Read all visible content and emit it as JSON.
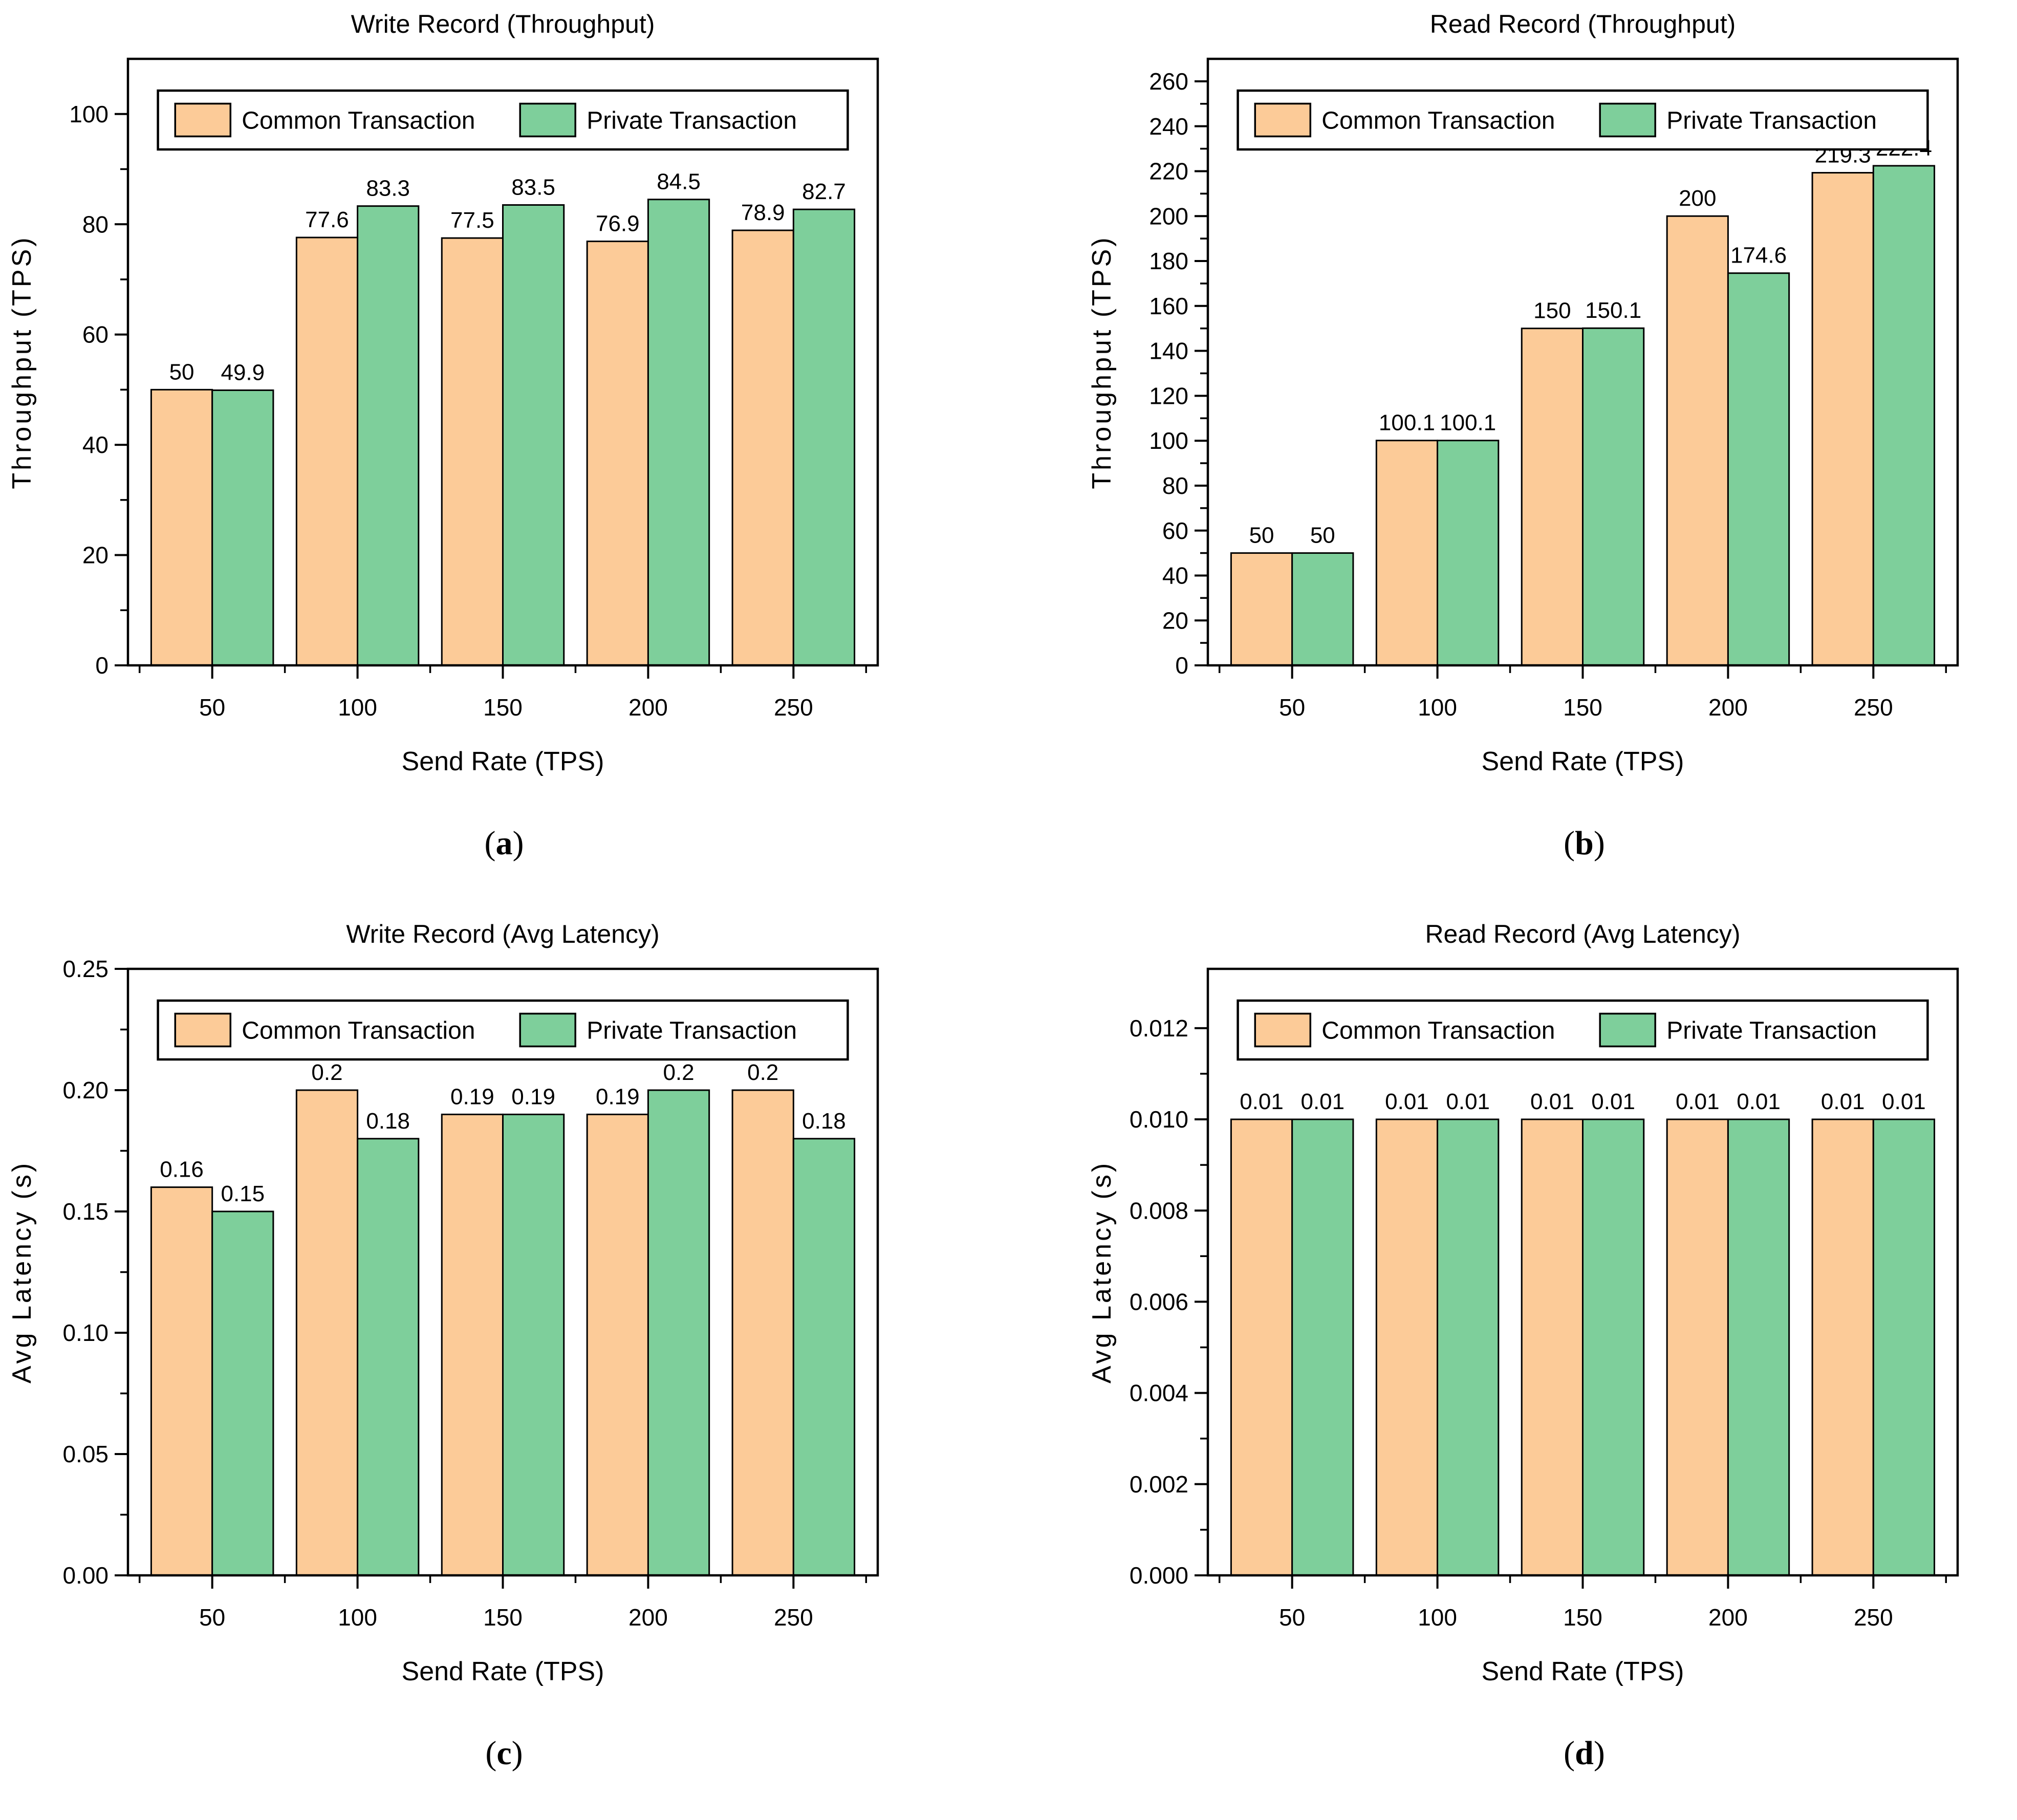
{
  "figure": {
    "background": "#FFFFFF",
    "accent_colors": {
      "common": "#FCCB98",
      "private": "#7ECF9B",
      "axis": "#000000"
    }
  },
  "chart_data": [
    {
      "id": "a",
      "type": "bar",
      "title": "Write Record (Throughput)",
      "xlabel": "Send Rate (TPS)",
      "ylabel": "Throughput (TPS)",
      "caption": {
        "open": "(",
        "letter": "a",
        "close": ")"
      },
      "categories": [
        50,
        100,
        150,
        200,
        250
      ],
      "xlim": [
        21,
        279
      ],
      "ylim": [
        0,
        110
      ],
      "yticks": [
        "0",
        "20",
        "40",
        "60",
        "80",
        "100"
      ],
      "grid": false,
      "legend_position": "top-center-inside",
      "series": [
        {
          "name": "Common Transaction",
          "color": "#FCCB98",
          "values": [
            50,
            77.6,
            77.5,
            76.9,
            78.9
          ],
          "labels": [
            "50",
            "77.6",
            "77.5",
            "76.9",
            "78.9"
          ]
        },
        {
          "name": "Private Transaction",
          "color": "#7ECF9B",
          "values": [
            49.9,
            83.3,
            83.5,
            84.5,
            82.7
          ],
          "labels": [
            "49.9",
            "83.3",
            "83.5",
            "84.5",
            "82.7"
          ]
        }
      ]
    },
    {
      "id": "b",
      "type": "bar",
      "title": "Read Record (Throughput)",
      "xlabel": "Send Rate (TPS)",
      "ylabel": "Throughput (TPS)",
      "caption": {
        "open": "(",
        "letter": "b",
        "close": ")"
      },
      "categories": [
        50,
        100,
        150,
        200,
        250
      ],
      "xlim": [
        21,
        279
      ],
      "ylim": [
        0,
        270
      ],
      "yticks": [
        "0",
        "20",
        "40",
        "60",
        "80",
        "100",
        "120",
        "140",
        "160",
        "180",
        "200",
        "220",
        "240",
        "260"
      ],
      "grid": false,
      "legend_position": "top-center-inside",
      "series": [
        {
          "name": "Common Transaction",
          "color": "#FCCB98",
          "values": [
            50,
            100.1,
            150,
            200,
            219.3
          ],
          "labels": [
            "50",
            "100.1",
            "150",
            "200",
            "219.3"
          ]
        },
        {
          "name": "Private Transaction",
          "color": "#7ECF9B",
          "values": [
            50,
            100.1,
            150.1,
            174.6,
            222.4
          ],
          "labels": [
            "50",
            "100.1",
            "150.1",
            "174.6",
            "222.4"
          ]
        }
      ]
    },
    {
      "id": "c",
      "type": "bar",
      "title": "Write Record (Avg Latency)",
      "xlabel": "Send Rate (TPS)",
      "ylabel": "Avg Latency (s)",
      "caption": {
        "open": "(",
        "letter": "c",
        "close": ")"
      },
      "categories": [
        50,
        100,
        150,
        200,
        250
      ],
      "xlim": [
        21,
        279
      ],
      "ylim": [
        0,
        0.25
      ],
      "yticks": [
        "0.00",
        "0.05",
        "0.10",
        "0.15",
        "0.20",
        "0.25"
      ],
      "grid": false,
      "legend_position": "top-center-inside",
      "series": [
        {
          "name": "Common Transaction",
          "color": "#FCCB98",
          "values": [
            0.16,
            0.2,
            0.19,
            0.19,
            0.2
          ],
          "labels": [
            "0.16",
            "0.2",
            "0.19",
            "0.19",
            "0.2"
          ]
        },
        {
          "name": "Private Transaction",
          "color": "#7ECF9B",
          "values": [
            0.15,
            0.18,
            0.19,
            0.2,
            0.18
          ],
          "labels": [
            "0.15",
            "0.18",
            "0.19",
            "0.2",
            "0.18"
          ]
        }
      ]
    },
    {
      "id": "d",
      "type": "bar",
      "title": "Read Record (Avg Latency)",
      "xlabel": "Send Rate (TPS)",
      "ylabel": "Avg Latency (s)",
      "caption": {
        "open": "(",
        "letter": "d",
        "close": ")"
      },
      "categories": [
        50,
        100,
        150,
        200,
        250
      ],
      "xlim": [
        21,
        279
      ],
      "ylim": [
        0,
        0.0133
      ],
      "yticks": [
        "0.000",
        "0.002",
        "0.004",
        "0.006",
        "0.008",
        "0.010",
        "0.012"
      ],
      "grid": false,
      "legend_position": "top-center-inside",
      "series": [
        {
          "name": "Common Transaction",
          "color": "#FCCB98",
          "values": [
            0.01,
            0.01,
            0.01,
            0.01,
            0.01
          ],
          "labels": [
            "0.01",
            "0.01",
            "0.01",
            "0.01",
            "0.01"
          ]
        },
        {
          "name": "Private Transaction",
          "color": "#7ECF9B",
          "values": [
            0.01,
            0.01,
            0.01,
            0.01,
            0.01
          ],
          "labels": [
            "0.01",
            "0.01",
            "0.01",
            "0.01",
            "0.01"
          ]
        }
      ]
    }
  ]
}
